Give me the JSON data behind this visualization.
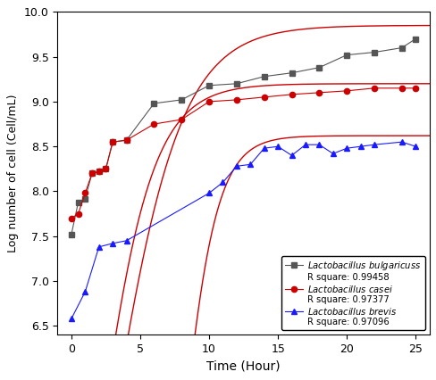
{
  "title": "",
  "xlabel": "Time (Hour)",
  "ylabel": "Log number of cell (Cell/mL)",
  "xlim": [
    -1,
    26
  ],
  "ylim": [
    6.4,
    10.0
  ],
  "xticks": [
    0,
    5,
    10,
    15,
    20,
    25
  ],
  "yticks": [
    6.5,
    7.0,
    7.5,
    8.0,
    8.5,
    9.0,
    9.5,
    10.0
  ],
  "bulgaricus_x": [
    0,
    0.5,
    1,
    1.5,
    2,
    2.5,
    3,
    4,
    6,
    8,
    10,
    12,
    14,
    16,
    18,
    20,
    22,
    24,
    25
  ],
  "bulgaricus_y": [
    7.52,
    7.88,
    7.92,
    8.2,
    8.22,
    8.25,
    8.55,
    8.57,
    8.98,
    9.02,
    9.18,
    9.2,
    9.28,
    9.32,
    9.38,
    9.52,
    9.55,
    9.6,
    9.7
  ],
  "casei_x": [
    0,
    0.5,
    1,
    1.5,
    2,
    2.5,
    3,
    4,
    6,
    8,
    10,
    12,
    14,
    16,
    18,
    20,
    22,
    24,
    25
  ],
  "casei_y": [
    7.7,
    7.75,
    7.98,
    8.2,
    8.22,
    8.25,
    8.55,
    8.57,
    8.75,
    8.8,
    9.0,
    9.02,
    9.05,
    9.08,
    9.1,
    9.12,
    9.15,
    9.15,
    9.15
  ],
  "brevis_x": [
    0,
    1,
    2,
    3,
    4,
    10,
    11,
    12,
    13,
    14,
    15,
    16,
    17,
    18,
    19,
    20,
    21,
    22,
    24,
    25
  ],
  "brevis_y": [
    6.58,
    6.88,
    7.38,
    7.42,
    7.45,
    7.98,
    8.1,
    8.28,
    8.3,
    8.48,
    8.5,
    8.4,
    8.52,
    8.52,
    8.42,
    8.48,
    8.5,
    8.52,
    8.55,
    8.5
  ],
  "bulgaricus_color": "#555555",
  "casei_color": "#cc0000",
  "brevis_color": "#1a1aff",
  "fit_color": "#cc0000",
  "bulgaricus_rsq": "R square: 0.99458",
  "casei_rsq": "R square: 0.97377",
  "brevis_rsq": "R square: 0.97096",
  "bulgaricus_fit_params": [
    9.85,
    0.38,
    2.5
  ],
  "casei_fit_params": [
    9.2,
    0.48,
    1.5
  ],
  "brevis_fit_params": [
    8.62,
    0.72,
    7.5
  ]
}
